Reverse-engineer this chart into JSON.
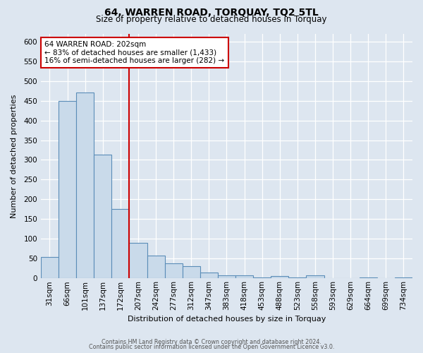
{
  "title": "64, WARREN ROAD, TORQUAY, TQ2 5TL",
  "subtitle": "Size of property relative to detached houses in Torquay",
  "xlabel": "Distribution of detached houses by size in Torquay",
  "ylabel": "Number of detached properties",
  "bin_labels": [
    "31sqm",
    "66sqm",
    "101sqm",
    "137sqm",
    "172sqm",
    "207sqm",
    "242sqm",
    "277sqm",
    "312sqm",
    "347sqm",
    "383sqm",
    "418sqm",
    "453sqm",
    "488sqm",
    "523sqm",
    "558sqm",
    "593sqm",
    "629sqm",
    "664sqm",
    "699sqm",
    "734sqm"
  ],
  "bar_values": [
    55,
    450,
    470,
    313,
    175,
    90,
    57,
    38,
    30,
    15,
    7,
    8,
    3,
    5,
    2,
    8,
    1,
    0,
    2,
    0,
    2
  ],
  "bar_color": "#c9daea",
  "bar_edge_color": "#5b8db8",
  "vline_index": 5,
  "property_line_label": "64 WARREN ROAD: 202sqm",
  "annotation_line1": "← 83% of detached houses are smaller (1,433)",
  "annotation_line2": "16% of semi-detached houses are larger (282) →",
  "annotation_box_facecolor": "#ffffff",
  "annotation_box_edgecolor": "#cc0000",
  "vline_color": "#cc0000",
  "ylim": [
    0,
    620
  ],
  "yticks": [
    0,
    50,
    100,
    150,
    200,
    250,
    300,
    350,
    400,
    450,
    500,
    550,
    600
  ],
  "title_fontsize": 10,
  "subtitle_fontsize": 8.5,
  "xlabel_fontsize": 8,
  "ylabel_fontsize": 8,
  "tick_fontsize": 7.5,
  "footer1": "Contains HM Land Registry data © Crown copyright and database right 2024.",
  "footer2": "Contains public sector information licensed under the Open Government Licence v3.0.",
  "background_color": "#dde6f0",
  "plot_bg_color": "#dde6f0"
}
